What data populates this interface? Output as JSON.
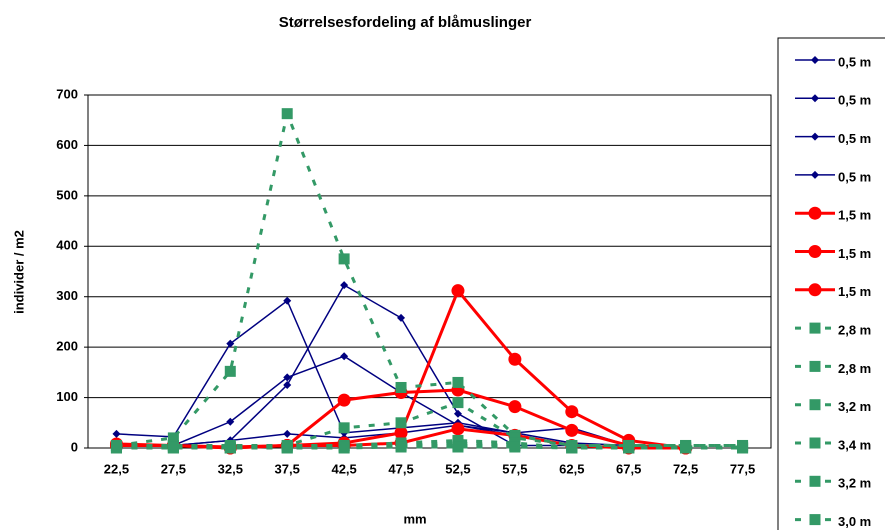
{
  "chart_data": {
    "type": "line",
    "title": "Størrelsesfordeling af blåmuslinger",
    "x_label": "mm",
    "y_label": "individer / m2",
    "categories": [
      "22,5",
      "27,5",
      "32,5",
      "37,5",
      "42,5",
      "47,5",
      "52,5",
      "57,5",
      "62,5",
      "67,5",
      "72,5",
      "77,5"
    ],
    "ylim": [
      0,
      700
    ],
    "yticks": [
      0,
      100,
      200,
      300,
      400,
      500,
      600,
      700
    ],
    "grid": true,
    "legend": "right",
    "series": [
      {
        "name": "0,5 m",
        "color": "#000080",
        "marker": "diamond",
        "dashed": false,
        "values": [
          28,
          22,
          207,
          292,
          30,
          40,
          50,
          30,
          10,
          5,
          0,
          null
        ]
      },
      {
        "name": "0,5 m",
        "color": "#000080",
        "marker": "diamond",
        "dashed": false,
        "values": [
          5,
          5,
          52,
          140,
          182,
          110,
          45,
          30,
          40,
          5,
          0,
          null
        ]
      },
      {
        "name": "0,5 m",
        "color": "#000080",
        "marker": "diamond",
        "dashed": false,
        "values": [
          5,
          5,
          15,
          125,
          323,
          258,
          68,
          5,
          5,
          0,
          0,
          null
        ]
      },
      {
        "name": "0,5 m",
        "color": "#000080",
        "marker": "diamond",
        "dashed": false,
        "values": [
          5,
          5,
          15,
          28,
          20,
          30,
          45,
          25,
          5,
          0,
          0,
          null
        ]
      },
      {
        "name": "1,5 m",
        "color": "#ff0000",
        "marker": "circle",
        "dashed": false,
        "values": [
          8,
          5,
          2,
          5,
          10,
          30,
          312,
          176,
          72,
          15,
          0,
          null
        ]
      },
      {
        "name": "1,5 m",
        "color": "#ff0000",
        "marker": "circle",
        "dashed": false,
        "values": [
          5,
          5,
          0,
          5,
          95,
          110,
          115,
          82,
          35,
          5,
          0,
          null
        ]
      },
      {
        "name": "1,5 m",
        "color": "#ff0000",
        "marker": "circle",
        "dashed": false,
        "values": [
          5,
          5,
          0,
          5,
          5,
          10,
          38,
          25,
          5,
          0,
          0,
          null
        ]
      },
      {
        "name": "2,8 m",
        "color": "#339966",
        "marker": "square",
        "dashed": true,
        "values": [
          5,
          20,
          152,
          663,
          375,
          120,
          130,
          25,
          5,
          5,
          5,
          5
        ]
      },
      {
        "name": "2,8 m",
        "color": "#339966",
        "marker": "square",
        "dashed": true,
        "values": [
          5,
          5,
          5,
          5,
          40,
          50,
          90,
          20,
          5,
          5,
          5,
          5
        ]
      },
      {
        "name": "3,2 m",
        "color": "#339966",
        "marker": "square",
        "dashed": true,
        "values": [
          0,
          0,
          0,
          0,
          5,
          5,
          10,
          5,
          0,
          0,
          0,
          0
        ]
      },
      {
        "name": "3,4 m",
        "color": "#339966",
        "marker": "square",
        "dashed": true,
        "values": [
          0,
          5,
          0,
          5,
          5,
          10,
          15,
          10,
          0,
          0,
          0,
          0
        ]
      },
      {
        "name": "3,2 m",
        "color": "#339966",
        "marker": "square",
        "dashed": true,
        "values": [
          2,
          2,
          2,
          2,
          2,
          5,
          5,
          5,
          2,
          2,
          2,
          2
        ]
      },
      {
        "name": "3,0 m",
        "color": "#339966",
        "marker": "square",
        "dashed": true,
        "values": [
          0,
          0,
          0,
          0,
          0,
          2,
          2,
          2,
          0,
          0,
          0,
          0
        ]
      }
    ]
  }
}
